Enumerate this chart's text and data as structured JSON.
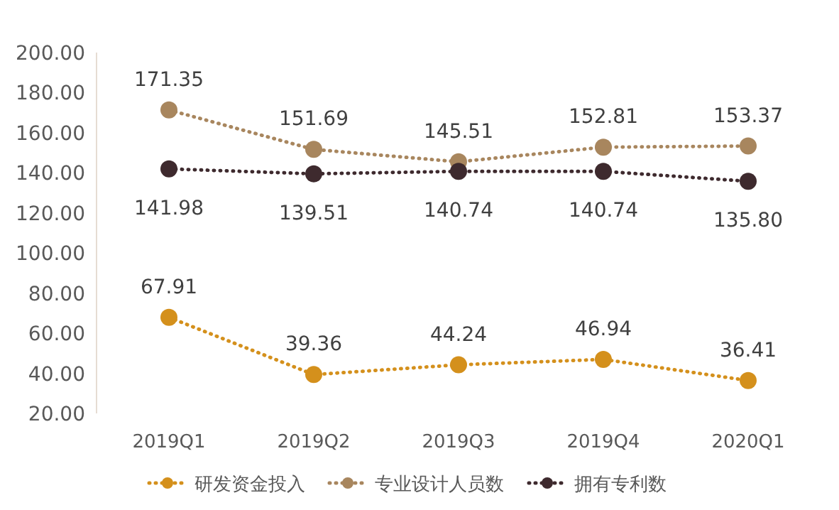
{
  "chart_data": {
    "type": "line",
    "categories": [
      "2019Q1",
      "2019Q2",
      "2019Q3",
      "2019Q4",
      "2020Q1"
    ],
    "series": [
      {
        "name": "研发资金投入",
        "color": "#d4901c",
        "values": [
          67.91,
          39.36,
          44.24,
          46.94,
          36.41
        ],
        "value_labels": [
          "67.91",
          "39.36",
          "44.24",
          "46.94",
          "36.41"
        ]
      },
      {
        "name": "专业设计人员数",
        "color": "#a8865e",
        "values": [
          171.35,
          151.69,
          145.51,
          152.81,
          153.37
        ],
        "value_labels": [
          "171.35",
          "151.69",
          "145.51",
          "152.81",
          "153.37"
        ]
      },
      {
        "name": "拥有专利数",
        "color": "#3e2a2e",
        "values": [
          141.98,
          139.51,
          140.74,
          140.74,
          135.8
        ],
        "value_labels": [
          "141.98",
          "139.51",
          "140.74",
          "140.74",
          "135.80"
        ]
      }
    ],
    "ylim": [
      20,
      200
    ],
    "yticks": [
      {
        "value": 20,
        "label": "20.00"
      },
      {
        "value": 40,
        "label": "40.00"
      },
      {
        "value": 60,
        "label": "60.00"
      },
      {
        "value": 80,
        "label": "80.00"
      },
      {
        "value": 100,
        "label": "100.00"
      },
      {
        "value": 120,
        "label": "120.00"
      },
      {
        "value": 140,
        "label": "140.00"
      },
      {
        "value": 160,
        "label": "160.00"
      },
      {
        "value": 180,
        "label": "180.00"
      },
      {
        "value": 200,
        "label": "200.00"
      }
    ],
    "marker": "circle",
    "line_style": "dotted",
    "legend": "bottom"
  }
}
